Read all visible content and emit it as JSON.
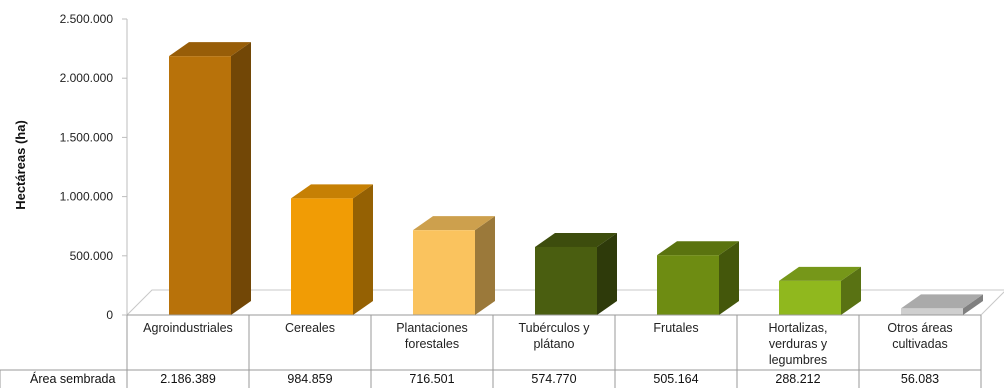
{
  "chart_data": {
    "type": "bar",
    "categories": [
      [
        "Agroindustriales"
      ],
      [
        "Cereales"
      ],
      [
        "Plantaciones",
        "forestales"
      ],
      [
        "Tubérculos y",
        "plátano"
      ],
      [
        "Frutales"
      ],
      [
        "Hortalizas,",
        "verduras y",
        "legumbres"
      ],
      [
        "Otros áreas",
        "cultivadas"
      ]
    ],
    "series": [
      {
        "name": "Área sembrada",
        "values": [
          2186389,
          984859,
          716501,
          574770,
          505164,
          288212,
          56083
        ],
        "value_labels": [
          "2.186.389",
          "984.859",
          "716.501",
          "574.770",
          "505.164",
          "288.212",
          "56.083"
        ]
      }
    ],
    "colors": [
      "#B8720A",
      "#F19C05",
      "#FAC35E",
      "#4A5E10",
      "#6E8C12",
      "#90B81E",
      "#CFCFCF"
    ],
    "ylabel": "Hectáreas (ha)",
    "ylim": [
      0,
      2500000
    ],
    "yticks": [
      0,
      500000,
      1000000,
      1500000,
      2000000,
      2500000
    ],
    "ytick_labels": [
      "0",
      "500.000",
      "1.000.000",
      "1.500.000",
      "2.000.000",
      "2.500.000"
    ],
    "grid": false,
    "legend": "data-table",
    "style": "3d-column"
  }
}
